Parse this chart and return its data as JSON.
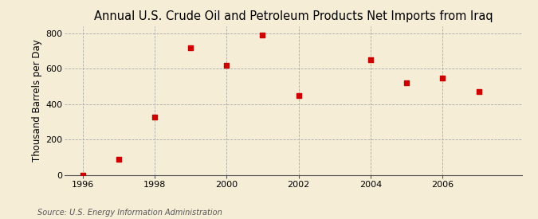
{
  "title": "Annual U.S. Crude Oil and Petroleum Products Net Imports from Iraq",
  "ylabel": "Thousand Barrels per Day",
  "source": "Source: U.S. Energy Information Administration",
  "background_color": "#f5edd6",
  "plot_background_color": "#f5edd6",
  "marker_color": "#cc0000",
  "grid_color": "#aaaaaa",
  "x_years": [
    1996,
    1997,
    1998,
    1999,
    2000,
    2001,
    2002,
    2004,
    2005,
    2006,
    2007
  ],
  "y_values": [
    0,
    90,
    330,
    720,
    620,
    790,
    450,
    650,
    520,
    550,
    470
  ],
  "xlim": [
    1995.5,
    2008.2
  ],
  "ylim": [
    0,
    840
  ],
  "yticks": [
    0,
    200,
    400,
    600,
    800
  ],
  "xticks": [
    1996,
    1998,
    2000,
    2002,
    2004,
    2006
  ],
  "title_fontsize": 10.5,
  "label_fontsize": 8.5,
  "tick_fontsize": 8,
  "source_fontsize": 7
}
